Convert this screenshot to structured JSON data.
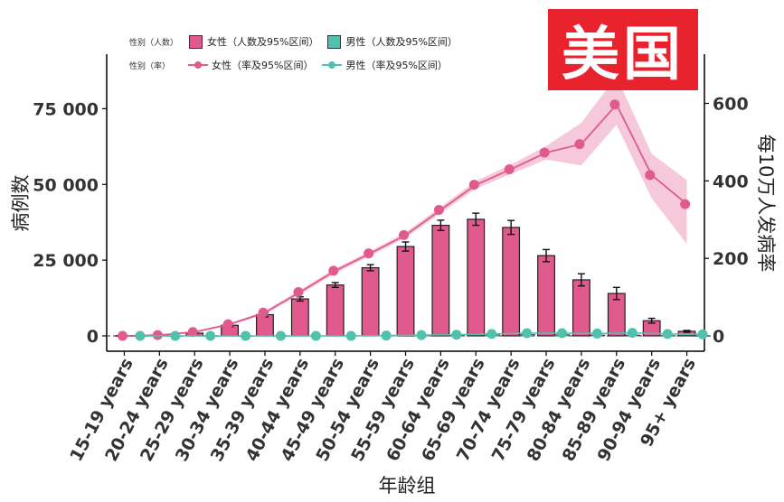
{
  "badge": "美国",
  "legend": {
    "count_title": "性别（人数）",
    "rate_title": "性别（率）",
    "female_count": "女性（人数及95%区间）",
    "male_count": "男性（人数及95%区间）",
    "female_rate": "女性（率及95%区间）",
    "male_rate": "男性（率及95%区间）"
  },
  "colors": {
    "female": "#e05a8d",
    "female_band": "#f3bfd3",
    "male": "#4fc1ad"
  },
  "chart_data": {
    "type": "bar",
    "xlabel": "年龄组",
    "ylabel_left": "病例数",
    "ylabel_right": "每10万人发病率",
    "categories": [
      "15-19 years",
      "20-24 years",
      "25-29 years",
      "30-34 years",
      "35-39 years",
      "40-44 years",
      "45-49 years",
      "50-54 years",
      "55-59 years",
      "60-64 years",
      "65-69 years",
      "70-74 years",
      "75-79 years",
      "80-84 years",
      "85-89 years",
      "90-94 years",
      "95+ years"
    ],
    "y_left": {
      "lim": [
        0,
        93000
      ],
      "ticks": [
        0,
        25000,
        50000,
        75000
      ],
      "tick_labels": [
        "0",
        "25 000",
        "50 000",
        "75 000"
      ]
    },
    "y_right": {
      "lim": [
        0,
        727
      ],
      "ticks": [
        0,
        200,
        400,
        600
      ],
      "tick_labels": [
        "0",
        "200",
        "400",
        "600"
      ]
    },
    "female_counts": {
      "values": [
        80,
        300,
        900,
        3500,
        7000,
        12200,
        16800,
        22500,
        29500,
        36500,
        38500,
        35800,
        26500,
        18500,
        14000,
        5000,
        1500
      ],
      "lower": [
        50,
        200,
        700,
        3000,
        6300,
        11500,
        16000,
        21500,
        28000,
        34800,
        36500,
        33500,
        24500,
        16500,
        12000,
        4200,
        1200
      ],
      "upper": [
        110,
        400,
        1100,
        4000,
        7700,
        12900,
        17600,
        23500,
        31000,
        38200,
        40500,
        38100,
        28500,
        20500,
        16000,
        5800,
        1800
      ]
    },
    "male_counts": {
      "values": [
        0,
        0,
        0,
        0,
        0,
        100,
        100,
        200,
        300,
        400,
        500,
        500,
        400,
        300,
        300,
        100,
        50
      ]
    },
    "female_rates": {
      "values": [
        0,
        2,
        10,
        30,
        60,
        113,
        168,
        213,
        260,
        325,
        390,
        430,
        473,
        495,
        597,
        415,
        340
      ],
      "lower": [
        0,
        1,
        8,
        27,
        56,
        107,
        162,
        207,
        253,
        317,
        380,
        418,
        455,
        440,
        545,
        355,
        237
      ],
      "upper": [
        0,
        3,
        12,
        33,
        64,
        119,
        174,
        219,
        267,
        333,
        400,
        442,
        490,
        550,
        670,
        470,
        402
      ]
    },
    "male_rates": {
      "values": [
        0,
        0,
        0,
        0,
        0,
        0,
        0,
        1,
        2,
        3,
        5,
        7,
        7,
        6,
        8,
        5,
        4
      ]
    }
  }
}
